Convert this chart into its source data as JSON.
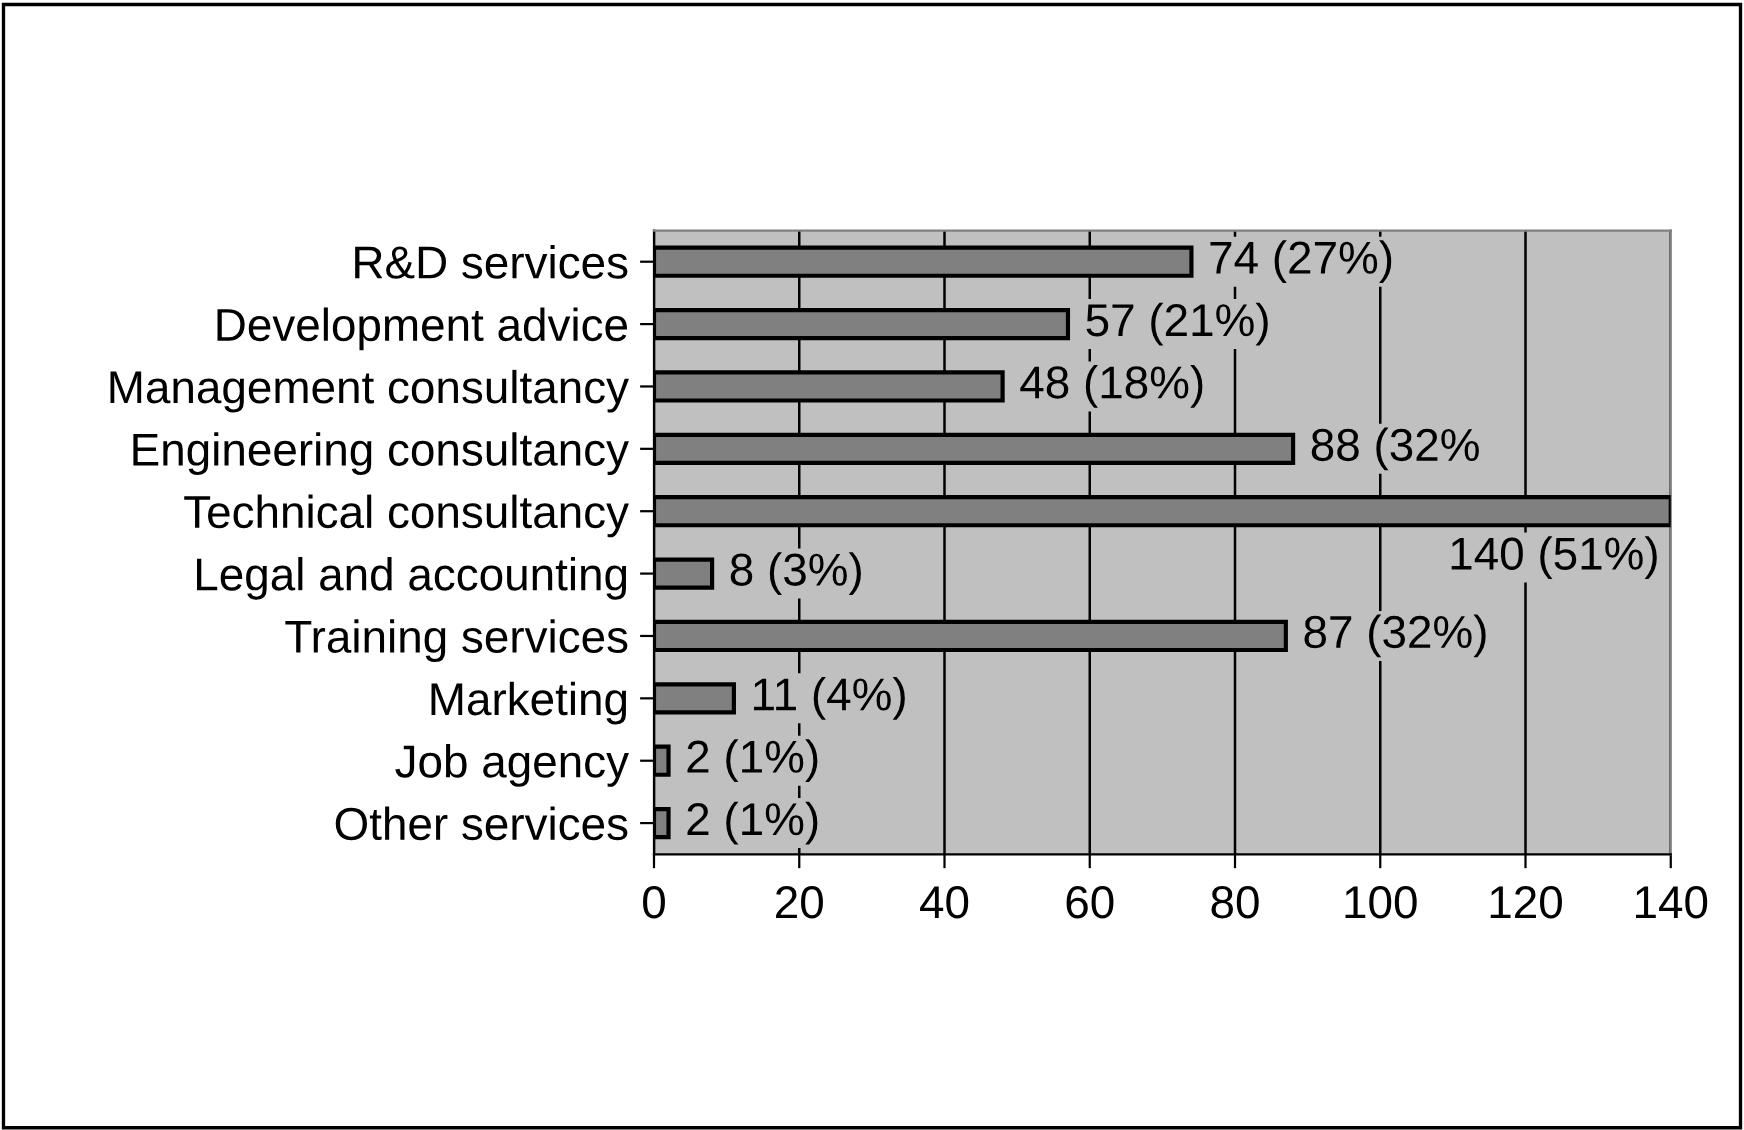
{
  "chart_data": {
    "type": "bar",
    "orientation": "horizontal",
    "categories": [
      "R&D services",
      "Development advice",
      "Management consultancy",
      "Engineering consultancy",
      "Technical consultancy",
      "Legal and accounting",
      "Training services",
      "Marketing",
      "Job agency",
      "Other services"
    ],
    "values": [
      74,
      57,
      48,
      88,
      140,
      8,
      87,
      11,
      2,
      2
    ],
    "value_labels": [
      "74 (27%)",
      "57 (21%)",
      "48 (18%)",
      "88 (32%",
      "140 (51%)",
      "8 (3%)",
      "87 (32%)",
      "11 (4%)",
      "2 (1%)",
      "2 (1%)"
    ],
    "color": "#808080",
    "xlim": [
      0,
      140
    ],
    "xticks": [
      0,
      20,
      40,
      60,
      80,
      100,
      120,
      140
    ],
    "grid": "x"
  }
}
